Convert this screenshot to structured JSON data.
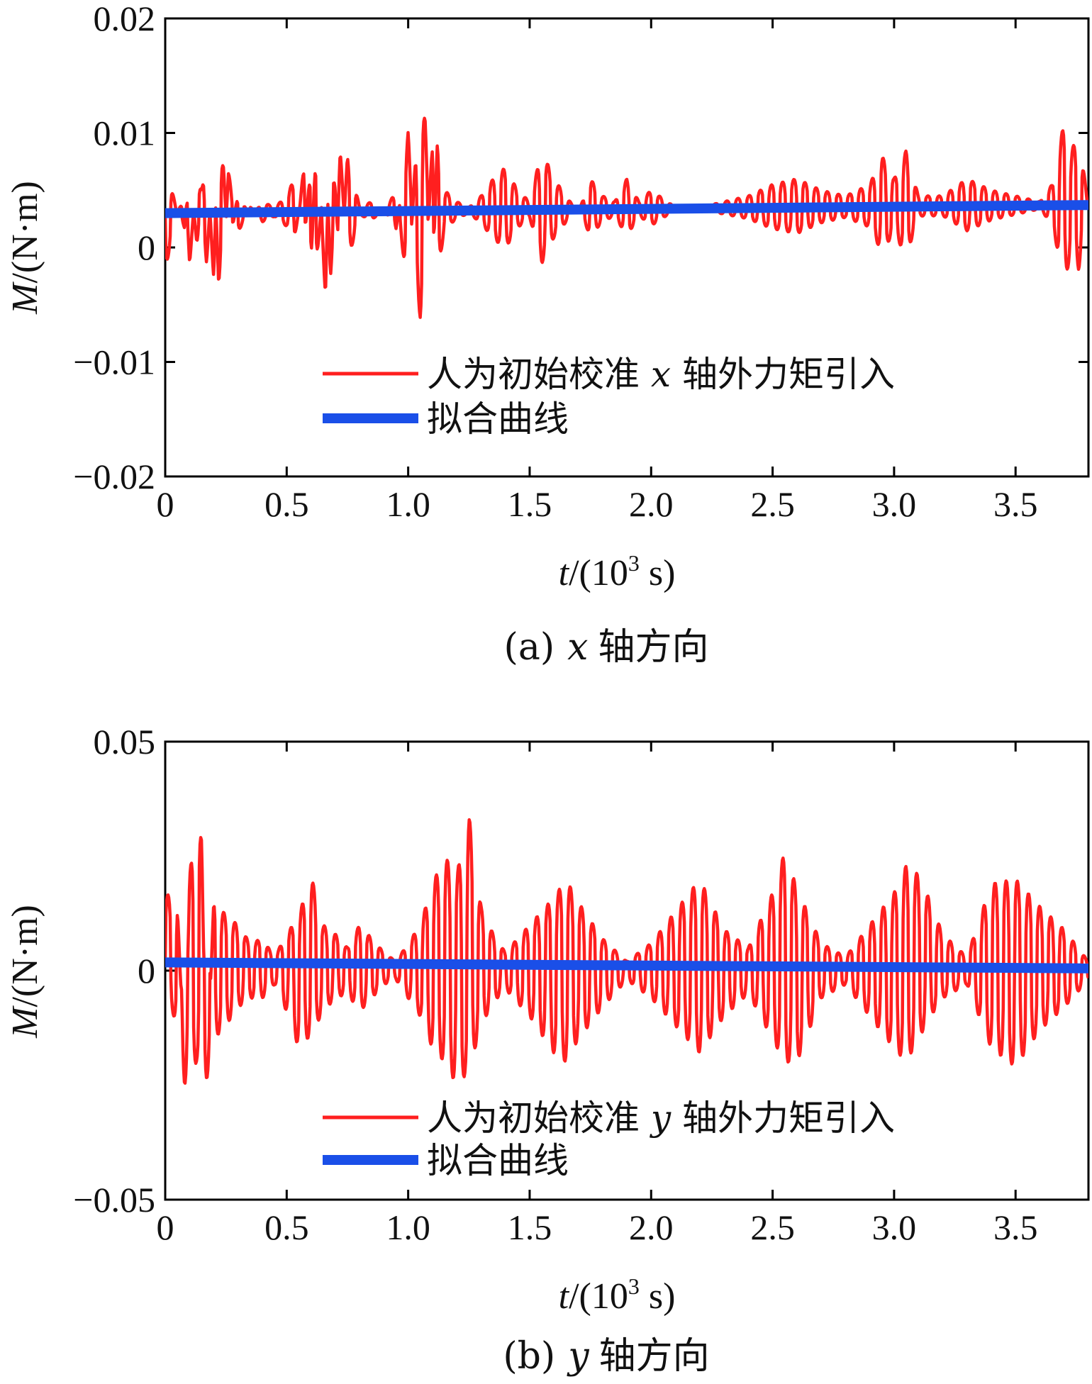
{
  "chart_data": [
    {
      "type": "line",
      "caption_prefix": "(a)",
      "caption_var": "x",
      "caption_suffix": "轴方向",
      "ylabel_var": "M",
      "ylabel_unit": "/(N·m)",
      "xlabel_var": "t",
      "xlabel_unit_pre": "/(10",
      "xlabel_unit_sup": "3",
      "xlabel_unit_post": " s)",
      "xlim": [
        0,
        3.8
      ],
      "ylim": [
        -0.02,
        0.02
      ],
      "xticks": [
        0,
        0.5,
        1.0,
        1.5,
        2.0,
        2.5,
        3.0,
        3.5
      ],
      "xtick_labels": [
        "0",
        "0.5",
        "1.0",
        "1.5",
        "2.0",
        "2.5",
        "3.0",
        "3.5"
      ],
      "yticks": [
        -0.02,
        -0.01,
        0,
        0.01,
        0.02
      ],
      "ytick_labels": [
        "−0.02",
        "−0.01",
        "0",
        "0.01",
        "0.02"
      ],
      "legend_position": "lower-center",
      "series": [
        {
          "name": "人为初始校准 x 轴外力矩引入",
          "name_parts": [
            "人为初始校准 ",
            "x",
            " 轴外力矩引入"
          ],
          "color": "#ff1f1f",
          "style": "oscillation",
          "x": [
            0,
            0.05,
            0.08,
            0.1,
            0.13,
            0.15,
            0.17,
            0.2,
            0.22,
            0.24,
            0.26,
            0.3,
            0.35,
            0.4,
            0.45,
            0.5,
            0.53,
            0.55,
            0.57,
            0.6,
            0.62,
            0.64,
            0.66,
            0.68,
            0.7,
            0.72,
            0.75,
            0.78,
            0.8,
            0.85,
            0.9,
            0.95,
            1.0,
            1.03,
            1.05,
            1.07,
            1.1,
            1.12,
            1.15,
            1.2,
            1.25,
            1.3,
            1.35,
            1.4,
            1.45,
            1.5,
            1.55,
            1.6,
            1.65,
            1.7,
            1.75,
            1.8,
            1.85,
            1.9,
            1.95,
            2.0,
            2.1,
            2.2,
            2.3,
            2.4,
            2.5,
            2.6,
            2.7,
            2.8,
            2.9,
            2.95,
            3.0,
            3.05,
            3.1,
            3.2,
            3.3,
            3.4,
            3.5,
            3.6,
            3.65,
            3.7,
            3.73,
            3.76,
            3.8
          ],
          "y": [
            -0.002,
            0.003,
            0.0045,
            -0.0015,
            0.006,
            0.005,
            0.008,
            -0.003,
            0.01,
            0.007,
            -0.001,
            0.005,
            0.0025,
            0.004,
            0.0035,
            0.0045,
            0.006,
            0.003,
            0.007,
            -0.002,
            0.009,
            0.0035,
            -0.0045,
            0.0095,
            0.005,
            -0.003,
            0.008,
            0.0055,
            0.0035,
            0.004,
            0.003,
            0.005,
            -0.0045,
            0.008,
            0.014,
            0.011,
            -0.004,
            0.0095,
            0.005,
            0.004,
            0.0035,
            0.0045,
            0.006,
            0.007,
            0.005,
            0.004,
            0.0085,
            0.006,
            0.0045,
            0.003,
            0.006,
            0.0045,
            0.004,
            0.006,
            0.004,
            0.005,
            0.0035,
            0.0035,
            0.004,
            0.0045,
            0.0055,
            0.006,
            0.005,
            0.0045,
            0.0055,
            0.008,
            0.006,
            0.0085,
            0.0045,
            0.0045,
            0.006,
            0.005,
            0.0045,
            0.004,
            0.0055,
            0.011,
            0.0085,
            0.01,
            0.0035
          ]
        },
        {
          "name": "拟合曲线",
          "color": "#1a4fe8",
          "x": [
            0,
            3.8
          ],
          "y": [
            0.003,
            0.0037
          ]
        }
      ]
    },
    {
      "type": "line",
      "caption_prefix": "(b)",
      "caption_var": "y",
      "caption_suffix": "轴方向",
      "ylabel_var": "M",
      "ylabel_unit": "/(N·m)",
      "xlabel_var": "t",
      "xlabel_unit_pre": "/(10",
      "xlabel_unit_sup": "3",
      "xlabel_unit_post": " s)",
      "xlim": [
        0,
        3.8
      ],
      "ylim": [
        -0.05,
        0.05
      ],
      "xticks": [
        0,
        0.5,
        1.0,
        1.5,
        2.0,
        2.5,
        3.0,
        3.5
      ],
      "xtick_labels": [
        "0",
        "0.5",
        "1.0",
        "1.5",
        "2.0",
        "2.5",
        "3.0",
        "3.5"
      ],
      "yticks": [
        -0.05,
        0,
        0.05
      ],
      "ytick_labels": [
        "−0.05",
        "0",
        "0.05"
      ],
      "legend_position": "lower-center",
      "series": [
        {
          "name": "人为初始校准 y 轴外力矩引入",
          "name_parts": [
            "人为初始校准 ",
            "y",
            " 轴外力矩引入"
          ],
          "color": "#ff1f1f",
          "style": "oscillation",
          "x": [
            0,
            0.05,
            0.08,
            0.1,
            0.13,
            0.15,
            0.17,
            0.2,
            0.25,
            0.3,
            0.35,
            0.4,
            0.45,
            0.5,
            0.55,
            0.6,
            0.65,
            0.7,
            0.75,
            0.8,
            0.85,
            0.9,
            0.95,
            1.0,
            1.05,
            1.1,
            1.15,
            1.2,
            1.25,
            1.3,
            1.35,
            1.4,
            1.5,
            1.6,
            1.65,
            1.7,
            1.8,
            1.9,
            2.0,
            2.1,
            2.2,
            2.3,
            2.4,
            2.5,
            2.55,
            2.6,
            2.7,
            2.8,
            2.9,
            3.0,
            3.05,
            3.1,
            3.15,
            3.2,
            3.3,
            3.4,
            3.5,
            3.6,
            3.7,
            3.8
          ],
          "y": [
            0.017,
            0.015,
            -0.025,
            0.02,
            0.039,
            0.028,
            -0.028,
            0.016,
            0.012,
            0.01,
            0.006,
            0.007,
            0.003,
            0.008,
            0.012,
            0.021,
            0.01,
            0.008,
            0.005,
            0.01,
            0.007,
            0.004,
            0.002,
            0.006,
            0.01,
            0.019,
            0.025,
            0.021,
            0.034,
            0.014,
            0.008,
            0.004,
            0.01,
            0.016,
            0.02,
            0.015,
            0.007,
            0.002,
            0.006,
            0.013,
            0.02,
            0.009,
            0.005,
            0.017,
            0.026,
            0.018,
            0.006,
            0.003,
            0.01,
            0.017,
            0.023,
            0.021,
            0.015,
            0.008,
            0.003,
            0.019,
            0.02,
            0.014,
            0.009,
            0.002
          ],
          "y_min_env": [
            -0.005,
            -0.012,
            -0.025,
            -0.022,
            -0.02,
            -0.028,
            -0.024,
            -0.015,
            -0.012,
            -0.008,
            -0.006,
            -0.006,
            -0.003,
            -0.009,
            -0.017,
            -0.014,
            -0.009,
            -0.006,
            -0.005,
            -0.009,
            -0.006,
            -0.003,
            -0.002,
            -0.006,
            -0.01,
            -0.017,
            -0.02,
            -0.025,
            -0.022,
            -0.012,
            -0.007,
            -0.004,
            -0.01,
            -0.018,
            -0.02,
            -0.015,
            -0.008,
            -0.002,
            -0.006,
            -0.012,
            -0.018,
            -0.01,
            -0.005,
            -0.015,
            -0.02,
            -0.02,
            -0.006,
            -0.003,
            -0.01,
            -0.017,
            -0.02,
            -0.015,
            -0.01,
            -0.006,
            -0.003,
            -0.017,
            -0.021,
            -0.013,
            -0.008,
            -0.002
          ]
        },
        {
          "name": "拟合曲线",
          "color": "#1a4fe8",
          "x": [
            0,
            3.8
          ],
          "y": [
            0.0018,
            0.0005
          ]
        }
      ]
    }
  ]
}
